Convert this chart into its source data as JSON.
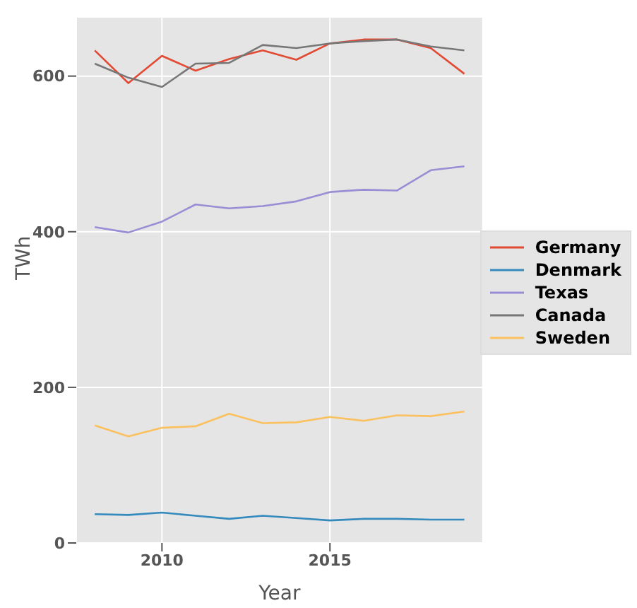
{
  "chart_data": {
    "type": "line",
    "xlabel": "Year",
    "ylabel": "TWh",
    "x": [
      2008,
      2009,
      2010,
      2011,
      2012,
      2013,
      2014,
      2015,
      2016,
      2017,
      2018,
      2019
    ],
    "series": [
      {
        "name": "Germany",
        "color": "#e24a33",
        "values": [
          633,
          591,
          626,
          607,
          622,
          633,
          621,
          642,
          647,
          647,
          636,
          603
        ]
      },
      {
        "name": "Denmark",
        "color": "#348abd",
        "values": [
          37,
          36,
          39,
          35,
          31,
          35,
          32,
          29,
          31,
          31,
          30,
          30
        ]
      },
      {
        "name": "Texas",
        "color": "#988ed5",
        "values": [
          406,
          399,
          413,
          435,
          430,
          433,
          439,
          451,
          454,
          453,
          479,
          484
        ]
      },
      {
        "name": "Canada",
        "color": "#777777",
        "values": [
          616,
          598,
          586,
          616,
          617,
          640,
          636,
          642,
          645,
          647,
          638,
          633
        ]
      },
      {
        "name": "Sweden",
        "color": "#fbc15e",
        "values": [
          151,
          137,
          148,
          150,
          166,
          154,
          155,
          162,
          157,
          164,
          163,
          169
        ]
      }
    ],
    "xlim": [
      2007.45,
      2019.55
    ],
    "xticks": [
      2010,
      2015
    ],
    "ylim": [
      0,
      676
    ],
    "yticks": [
      0,
      200,
      400,
      600
    ],
    "grid": true,
    "legend": "right",
    "marker": "none",
    "line_style": "solid"
  }
}
